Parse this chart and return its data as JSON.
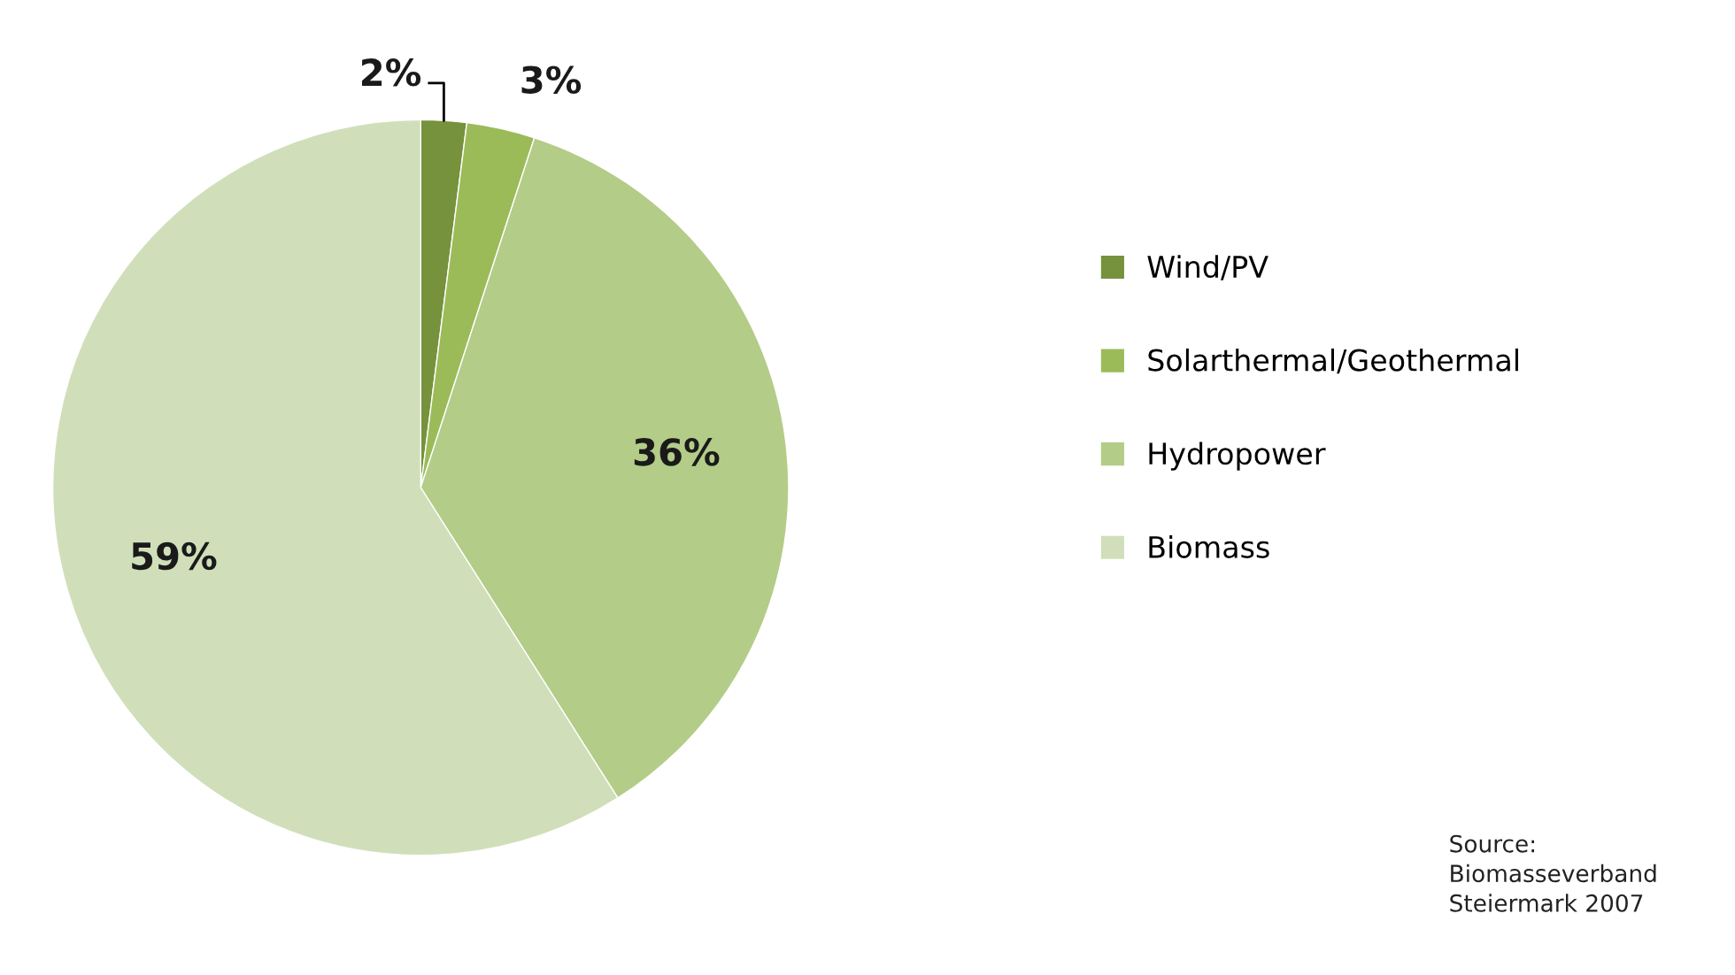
{
  "chart_data": {
    "type": "pie",
    "categories": [
      "Wind/PV",
      "Solarthermal/Geothermal",
      "Hydropower",
      "Biomass"
    ],
    "values": [
      2,
      3,
      36,
      59
    ],
    "colors": [
      "#76923c",
      "#9bbb59",
      "#b3cc87",
      "#d0dfba"
    ],
    "value_labels": [
      "2%",
      "3%",
      "36%",
      "59%"
    ],
    "legend": "right",
    "annotations": [
      "Source:\nBiomasseverband\nSteiermark 2007"
    ]
  }
}
